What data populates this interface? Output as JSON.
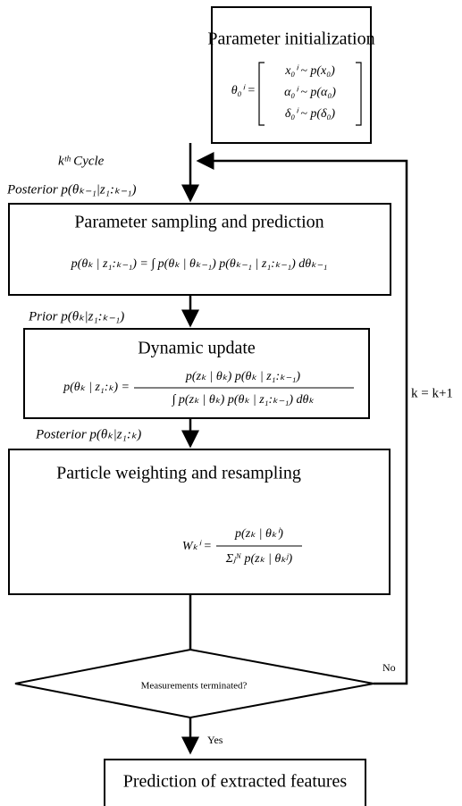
{
  "boxes": [
    {
      "title": "Parameter initialization",
      "formula": {
        "lhs": "θ₀ⁱ =",
        "rows": [
          "x₀ⁱ ~ p(x₀)",
          "α₀ⁱ ~ p(α₀)",
          "δ₀ⁱ ~ p(δ₀)"
        ]
      }
    },
    {
      "title": "Parameter sampling and prediction",
      "formula": "p(θₖ | z₁:ₖ₋₁) = ∫ p(θₖ | θₖ₋₁) p(θₖ₋₁ | z₁:ₖ₋₁) dθₖ₋₁"
    },
    {
      "title": "Dynamic update",
      "formula": {
        "lhs": "p(θₖ | z₁:ₖ) =",
        "numerator": "p(zₖ | θₖ) p(θₖ | z₁:ₖ₋₁)",
        "denominator": "∫ p(zₖ | θₖ) p(θₖ | z₁:ₖ₋₁) dθₖ"
      }
    },
    {
      "title": "Particle weighting and resampling",
      "formula": {
        "lhs": "Wₖⁱ =",
        "numerator": "p(zₖ | θₖⁱ)",
        "denominator": "Σⱼᴺ p(zₖ | θₖʲ)"
      }
    },
    {
      "title": "Prediction of extracted features"
    }
  ],
  "decision": "Measurements terminated?",
  "labels": {
    "cycle": "kᵗʰ Cycle",
    "posterior_prev": "Posterior p(θₖ₋₁|z₁:ₖ₋₁)",
    "prior": "Prior p(θₖ|z₁:ₖ₋₁)",
    "posterior": "Posterior p(θₖ|z₁:ₖ)",
    "no": "No",
    "yes": "Yes",
    "increment": "k = k+1"
  }
}
